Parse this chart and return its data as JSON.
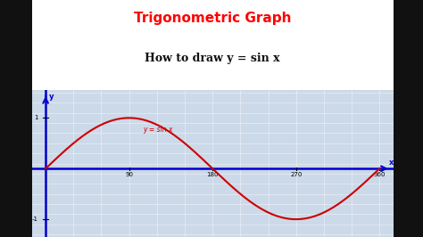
{
  "title": "Trigonometric Graph",
  "subtitle": "How to draw y = sin x",
  "title_color": "#FF0000",
  "subtitle_color": "#111111",
  "outer_bg": "#111111",
  "white_bg": "#FFFFFF",
  "graph_bg": "#ccd9e8",
  "table_bg": "#f0dfa0",
  "table_border_color": "#aaaaaa",
  "table_header_color": "#00aaff",
  "table_value_color": "#FF6600",
  "curve_color": "#CC0000",
  "axis_color": "#0000CC",
  "grid_color": "#b0c8dd",
  "grid_color2": "#FFFFFF",
  "label_color": "#CC0000",
  "x_ticks": [
    90,
    180,
    270,
    360
  ],
  "xlim": [
    -15,
    375
  ],
  "ylim": [
    -1.35,
    1.55
  ],
  "equation_label": "y = sin x",
  "xlabel": "x",
  "ylabel": "y",
  "title_fontsize": 11,
  "subtitle_fontsize": 9,
  "table_fontsize": 7.5
}
